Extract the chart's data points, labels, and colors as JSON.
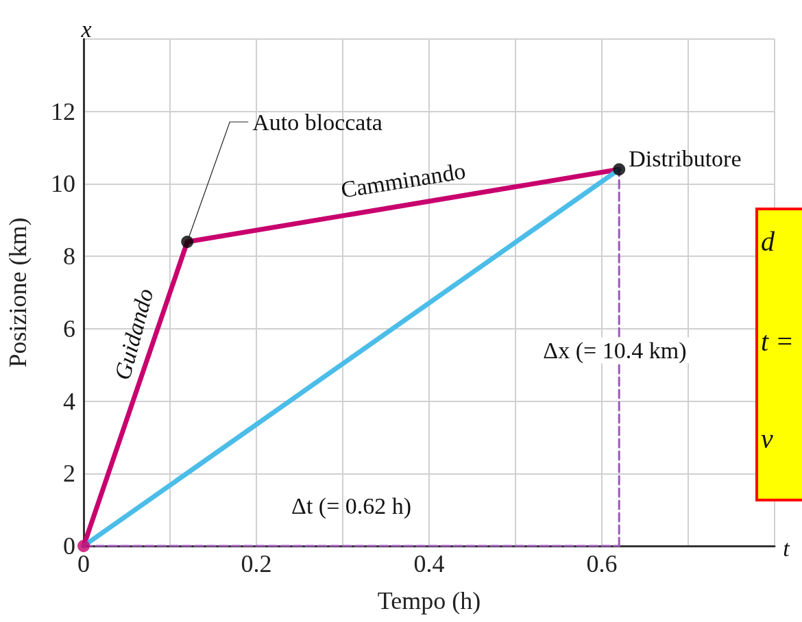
{
  "chart_data": {
    "type": "line",
    "xlabel": "Tempo (h)",
    "ylabel": "Posizione (km)",
    "xlim": [
      0,
      0.8
    ],
    "ylim": [
      0,
      14
    ],
    "xticks": [
      0,
      {
        "value": 0.1,
        "label": null
      },
      0.2,
      {
        "value": 0.3,
        "label": null
      },
      0.4,
      {
        "value": 0.5,
        "label": null
      },
      0.6,
      {
        "value": 0.7,
        "label": null
      },
      {
        "value": 0.8,
        "label": null
      }
    ],
    "yticks": [
      0,
      2,
      4,
      6,
      8,
      10,
      12,
      {
        "value": 14,
        "label": null
      }
    ],
    "grid": true,
    "series": [
      {
        "color": "#c8006e",
        "x": [
          0,
          0.12,
          0.62
        ],
        "values": [
          0,
          8.4,
          10.4
        ],
        "marker": "none",
        "line_style": "solid"
      },
      {
        "color": "#4bbde8",
        "x": [
          0,
          0.62
        ],
        "values": [
          0,
          10.4
        ],
        "marker": "none",
        "line_style": "solid"
      },
      {
        "color": "#9b59b6",
        "x": [
          0.62,
          0.62
        ],
        "values": [
          0,
          10.4
        ],
        "marker": "none",
        "line_style": "dashed"
      },
      {
        "color": "#9b59b6",
        "x": [
          0,
          0.62
        ],
        "values": [
          0,
          0
        ],
        "marker": "none",
        "line_style": "dashed"
      },
      {
        "type": "scatter",
        "x": [
          0,
          0.12,
          0.62
        ],
        "values": [
          0,
          8.4,
          10.4
        ],
        "colors": [
          "#c8006e",
          "#000000",
          "#000000"
        ],
        "marker": "circle"
      }
    ],
    "annotations": [
      {
        "text": "Auto bloccata",
        "x": 0.12,
        "y": 8.4
      },
      {
        "text": "Distributore",
        "x": 0.62,
        "y": 10.4
      },
      "Camminando",
      "Guidando",
      "Δx (= 10.4 km)",
      "Δt (= 0.62 h)",
      "x",
      "t",
      "d",
      "t =",
      "v"
    ]
  }
}
